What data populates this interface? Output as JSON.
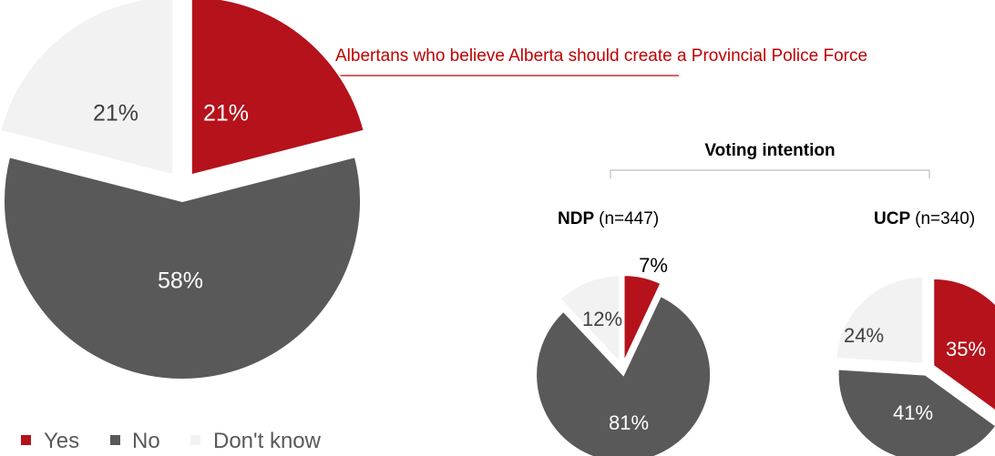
{
  "colors": {
    "yes": "#b5121b",
    "no": "#595959",
    "dont_know": "#f2f2f2",
    "subtitle": "#c00000",
    "rule": "#c00000",
    "bracket": "#bfbfbf"
  },
  "chart_data": {
    "type": "pie",
    "subtitle": "Albertans who believe Alberta should create a Provincial Police Force",
    "section_title": "Voting intention",
    "legend": {
      "position": "bottom-left",
      "items": [
        {
          "label": "Yes",
          "color_key": "yes"
        },
        {
          "label": "No",
          "color_key": "no"
        },
        {
          "label": "Don't know",
          "color_key": "dont_know"
        }
      ]
    },
    "pies": [
      {
        "id": "all",
        "group_bold": "",
        "group_n": "",
        "slices": [
          {
            "category": "Yes",
            "value": 21,
            "label": "21%"
          },
          {
            "category": "No",
            "value": 58,
            "label": "58%"
          },
          {
            "category": "Don't know",
            "value": 21,
            "label": "21%"
          }
        ]
      },
      {
        "id": "ndp",
        "group_bold": "NDP",
        "group_n": "(n=447)",
        "slices": [
          {
            "category": "Yes",
            "value": 7,
            "label": "7%"
          },
          {
            "category": "No",
            "value": 81,
            "label": "81%"
          },
          {
            "category": "Don't know",
            "value": 12,
            "label": "12%"
          }
        ]
      },
      {
        "id": "ucp",
        "group_bold": "UCP",
        "group_n": "(n=340)",
        "slices": [
          {
            "category": "Yes",
            "value": 35,
            "label": "35%"
          },
          {
            "category": "No",
            "value": 41,
            "label": "41%"
          },
          {
            "category": "Don't know",
            "value": 24,
            "label": "24%"
          }
        ]
      }
    ]
  }
}
